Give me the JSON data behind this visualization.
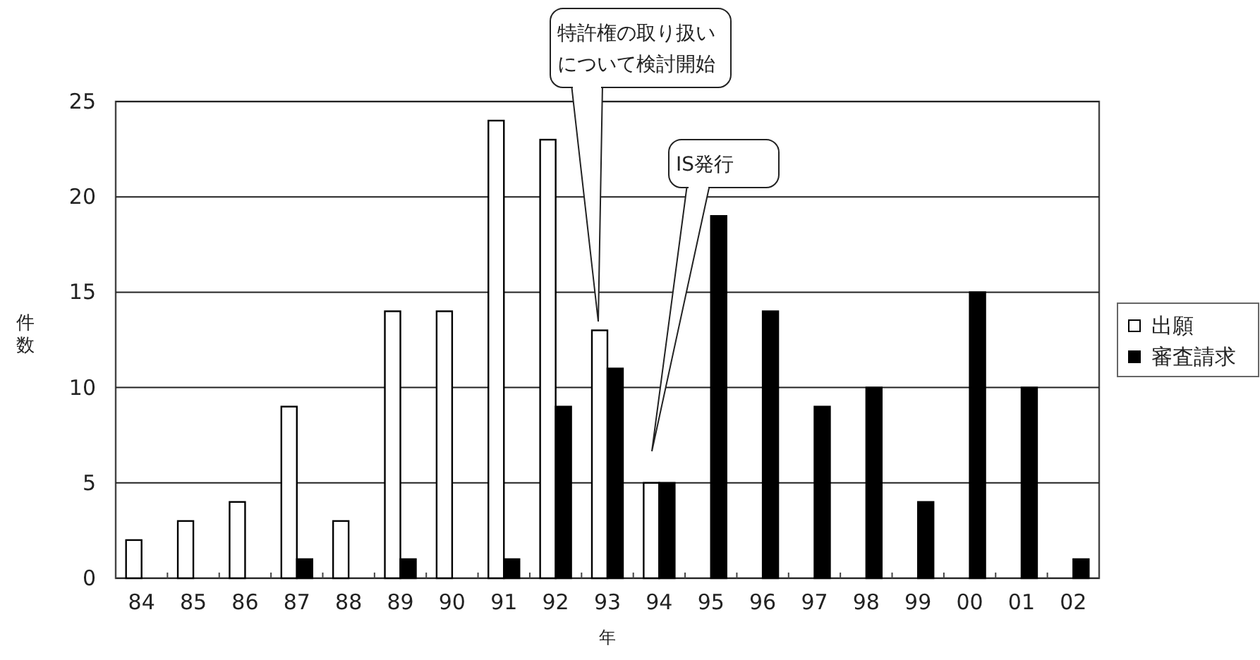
{
  "chart_data": {
    "type": "bar",
    "categories": [
      "84",
      "85",
      "86",
      "87",
      "88",
      "89",
      "90",
      "91",
      "92",
      "93",
      "94",
      "95",
      "96",
      "97",
      "98",
      "99",
      "00",
      "01",
      "02"
    ],
    "series": [
      {
        "name": "出願",
        "color": "#ffffff",
        "values": [
          2,
          3,
          4,
          9,
          3,
          14,
          14,
          24,
          23,
          13,
          5,
          0,
          0,
          0,
          0,
          0,
          0,
          0,
          0
        ]
      },
      {
        "name": "審査請求",
        "color": "#000000",
        "values": [
          0,
          0,
          0,
          1,
          0,
          1,
          0,
          1,
          9,
          11,
          5,
          19,
          14,
          9,
          10,
          4,
          15,
          10,
          1
        ]
      }
    ],
    "ylim": [
      0,
      25
    ],
    "yticks": [
      0,
      5,
      10,
      15,
      20,
      25
    ],
    "grid": "y",
    "legend": "right",
    "xlabel": "年",
    "ylabel": "件数",
    "annotations": [
      "特許権の取り扱いについて検討開始",
      "IS発行"
    ]
  }
}
